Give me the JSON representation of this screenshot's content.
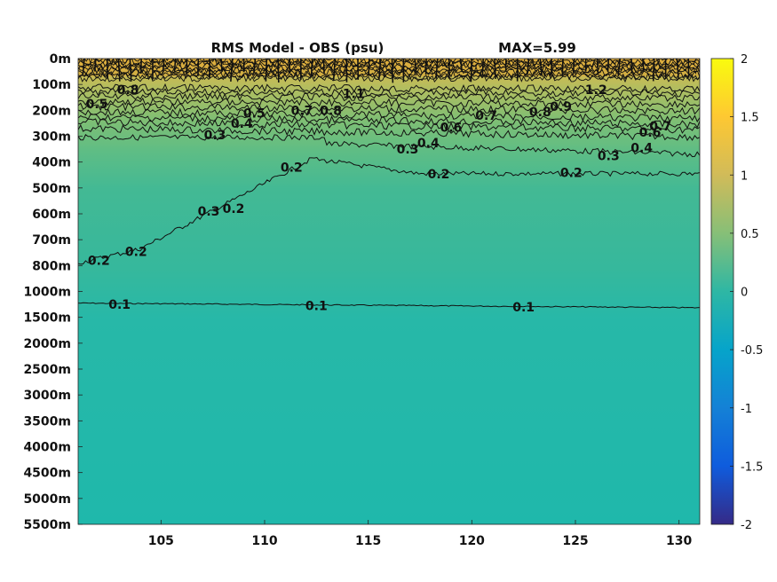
{
  "chart_data": {
    "type": "heatmap",
    "title": "RMS Model - OBS (psu)",
    "max_label": "MAX=5.99",
    "xlabel": "",
    "ylabel": "",
    "x_ticks": [
      "105",
      "110",
      "115",
      "120",
      "125",
      "130"
    ],
    "x_tick_values": [
      105,
      110,
      115,
      120,
      125,
      130
    ],
    "xlim": [
      101,
      131
    ],
    "depth_ticks": [
      "0m",
      "100m",
      "200m",
      "300m",
      "400m",
      "500m",
      "600m",
      "700m",
      "800m",
      "1000m",
      "1500m",
      "2000m",
      "2500m",
      "3000m",
      "3500m",
      "4000m",
      "4500m",
      "5000m",
      "5500m"
    ],
    "colorbar": {
      "min": -2,
      "max": 2,
      "ticks": [
        "2",
        "1.5",
        "1",
        "0.5",
        "0",
        "-0.5",
        "-1",
        "-1.5",
        "-2"
      ],
      "tick_values": [
        2,
        1.5,
        1,
        0.5,
        0,
        -0.5,
        -1,
        -1.5,
        -2
      ],
      "colormap": "parula",
      "colors": [
        "#352a87",
        "#0f5cdd",
        "#1481d6",
        "#06a4ca",
        "#2eb7a4",
        "#87bf77",
        "#d1bb59",
        "#fec832",
        "#f9fb0e"
      ]
    },
    "contour_levels": [
      0.1,
      0.2,
      0.3,
      0.4,
      0.5,
      0.6,
      0.7,
      0.8,
      0.9,
      1,
      1.1,
      1.2
    ],
    "contour_labels": [
      {
        "text": "0.1",
        "lon": 103,
        "depth_index": 9.5
      },
      {
        "text": "0.1",
        "lon": 112.5,
        "depth_index": 9.55
      },
      {
        "text": "0.1",
        "lon": 122.5,
        "depth_index": 9.6
      },
      {
        "text": "0.2",
        "lon": 102,
        "depth_index": 7.8
      },
      {
        "text": "0.2",
        "lon": 103.8,
        "depth_index": 7.45
      },
      {
        "text": "0.2",
        "lon": 108.5,
        "depth_index": 5.8
      },
      {
        "text": "0.2",
        "lon": 111.3,
        "depth_index": 4.2
      },
      {
        "text": "0.2",
        "lon": 118.4,
        "depth_index": 4.45
      },
      {
        "text": "0.2",
        "lon": 124.8,
        "depth_index": 4.4
      },
      {
        "text": "0.3",
        "lon": 107.3,
        "depth_index": 5.9
      },
      {
        "text": "0.3",
        "lon": 107.6,
        "depth_index": 2.95
      },
      {
        "text": "0.3",
        "lon": 116.9,
        "depth_index": 3.5
      },
      {
        "text": "0.3",
        "lon": 126.6,
        "depth_index": 3.75
      },
      {
        "text": "0.4",
        "lon": 108.9,
        "depth_index": 2.5
      },
      {
        "text": "0.4",
        "lon": 117.9,
        "depth_index": 3.25
      },
      {
        "text": "0.4",
        "lon": 128.2,
        "depth_index": 3.45
      },
      {
        "text": "0.5",
        "lon": 109.5,
        "depth_index": 2.1
      },
      {
        "text": "0.6",
        "lon": 119.0,
        "depth_index": 2.65
      },
      {
        "text": "0.7",
        "lon": 120.7,
        "depth_index": 2.2
      },
      {
        "text": "0.7",
        "lon": 129.1,
        "depth_index": 2.6
      },
      {
        "text": "0.6",
        "lon": 128.6,
        "depth_index": 2.85
      },
      {
        "text": "0.8",
        "lon": 123.3,
        "depth_index": 2.05
      },
      {
        "text": "0.9",
        "lon": 124.3,
        "depth_index": 1.85
      },
      {
        "text": "0.7",
        "lon": 111.8,
        "depth_index": 2.0
      },
      {
        "text": "0.8",
        "lon": 113.2,
        "depth_index": 2.0
      },
      {
        "text": "1.1",
        "lon": 114.3,
        "depth_index": 1.35
      },
      {
        "text": "1.2",
        "lon": 126.0,
        "depth_index": 1.2
      },
      {
        "text": "0.8",
        "lon": 103.4,
        "depth_index": 1.2
      },
      {
        "text": "0.5",
        "lon": 101.9,
        "depth_index": 1.75
      }
    ]
  }
}
